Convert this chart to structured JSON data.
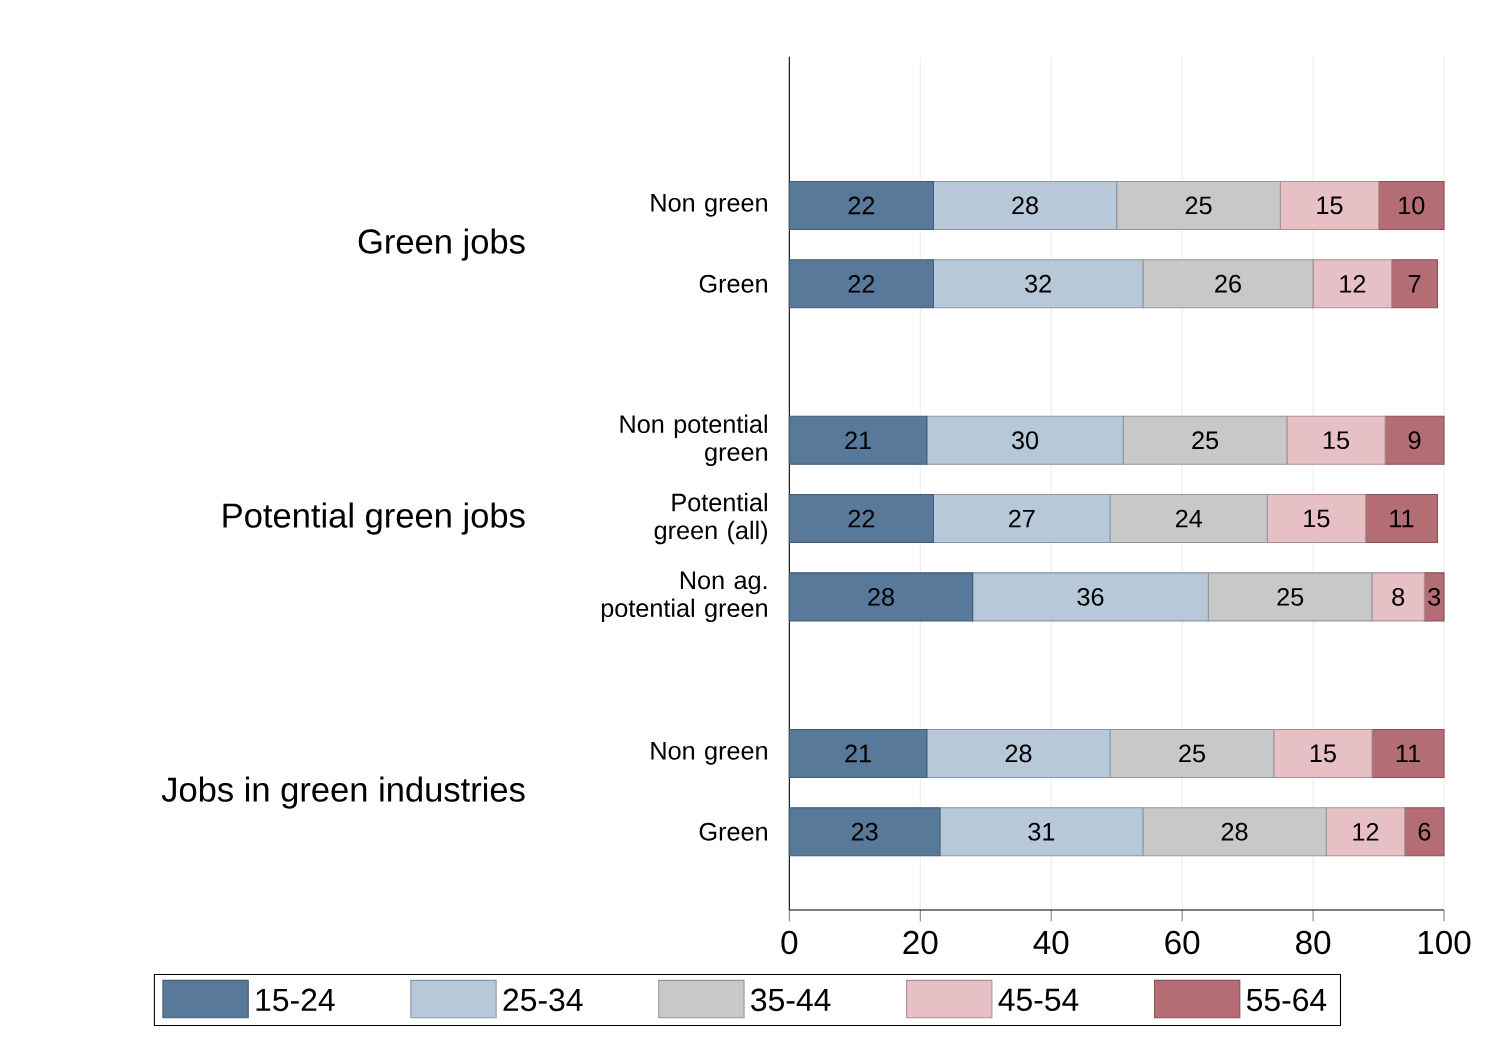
{
  "chart_data": {
    "type": "bar",
    "orientation": "horizontal",
    "stacked": true,
    "categories": [
      "Non green",
      "Green",
      null,
      "Non potential green",
      "Potential green (all)",
      "Non ag. potential green",
      null,
      "Non green",
      "Green"
    ],
    "series": [
      {
        "name": "15-24",
        "color": "#58799a",
        "values": [
          22,
          22,
          null,
          21,
          22,
          28,
          null,
          21,
          23
        ]
      },
      {
        "name": "25-34",
        "color": "#b7c9d8",
        "values": [
          28,
          32,
          null,
          30,
          27,
          36,
          null,
          28,
          31
        ]
      },
      {
        "name": "35-44",
        "color": "#c8c8c8",
        "values": [
          25,
          26,
          null,
          25,
          24,
          25,
          null,
          25,
          28
        ]
      },
      {
        "name": "45-54",
        "color": "#e6c0c5",
        "values": [
          15,
          12,
          null,
          15,
          15,
          8,
          null,
          15,
          12
        ]
      },
      {
        "name": "55-64",
        "color": "#b56d75",
        "values": [
          10,
          7,
          null,
          9,
          11,
          3,
          null,
          11,
          6
        ]
      }
    ],
    "annotations": [
      "Green jobs",
      "Potential green jobs",
      "Jobs in green industries"
    ],
    "xlim": [
      0,
      100
    ],
    "xticks": [
      0,
      20,
      40,
      60,
      80,
      100
    ],
    "data_labels": true,
    "grid": "x",
    "legend": "bottom"
  }
}
